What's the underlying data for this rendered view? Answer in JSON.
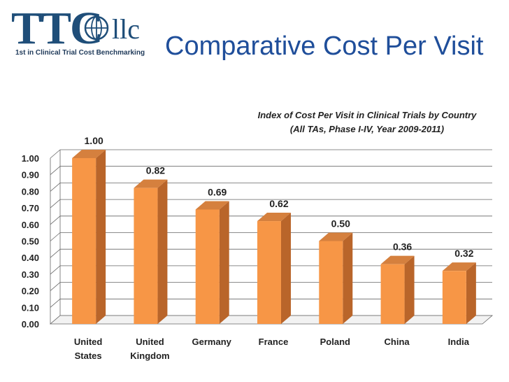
{
  "header": {
    "logo": {
      "main": "TTC",
      "suffix": "llc",
      "tagline": "1st in Clinical Trial Cost Benchmarking"
    },
    "title": "Comparative Cost Per Visit"
  },
  "colors": {
    "bar_front": "#f79646",
    "bar_side": "#b9652a",
    "bar_top": "#d5803e",
    "brand_blue": "#1f4e79",
    "title_blue": "#1f4e9a"
  },
  "chart_data": {
    "type": "bar",
    "style": "3d-column",
    "title": "Index of Cost Per Visit in Clinical Trials by Country",
    "subtitle": "(All TAs, Phase I-IV, Year 2009-2011)",
    "categories": [
      [
        "United",
        "States"
      ],
      [
        "United",
        "Kingdom"
      ],
      [
        "Germany"
      ],
      [
        "France"
      ],
      [
        "Poland"
      ],
      [
        "China"
      ],
      [
        "India"
      ]
    ],
    "values": [
      1.0,
      0.82,
      0.69,
      0.62,
      0.5,
      0.36,
      0.32
    ],
    "value_labels": [
      "1.00",
      "0.82",
      "0.69",
      "0.62",
      "0.50",
      "0.36",
      "0.32"
    ],
    "yticks": [
      "0.00",
      "0.10",
      "0.20",
      "0.30",
      "0.40",
      "0.50",
      "0.60",
      "0.70",
      "0.80",
      "0.90",
      "1.00"
    ],
    "ylim": [
      0,
      1.0
    ],
    "grid": true,
    "legend": "none"
  }
}
